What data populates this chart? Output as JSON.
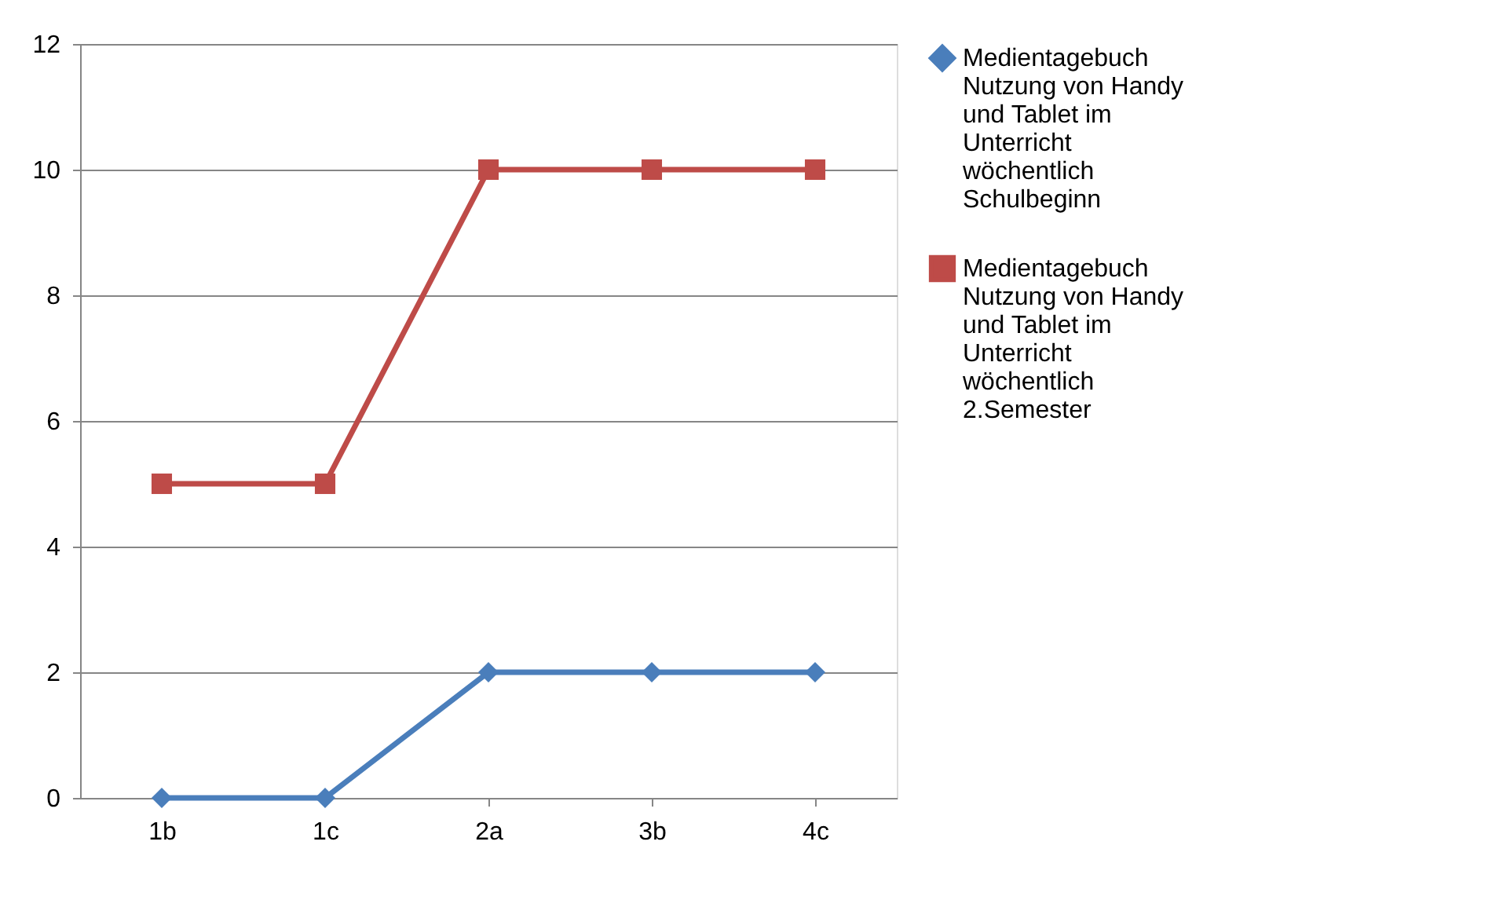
{
  "chart_data": {
    "type": "line",
    "categories": [
      "1b",
      "1c",
      "2a",
      "3b",
      "4c"
    ],
    "series": [
      {
        "name": "Medientagebuch Nutzung von Handy und Tablet im Unterricht wöchentlich Schulbeginn",
        "color": "#4a7ebb",
        "marker": "diamond",
        "values": [
          0,
          0,
          2,
          2,
          2
        ]
      },
      {
        "name": "Medientagebuch Nutzung von Handy und Tablet im Unterricht wöchentlich 2.Semester",
        "color": "#be4b48",
        "marker": "square",
        "values": [
          5,
          5,
          10,
          10,
          10
        ]
      }
    ],
    "ylim": [
      0,
      12
    ],
    "yticks": [
      0,
      2,
      4,
      6,
      8,
      10,
      12
    ],
    "grid": "y",
    "legend": "right",
    "line_style": "solid"
  }
}
